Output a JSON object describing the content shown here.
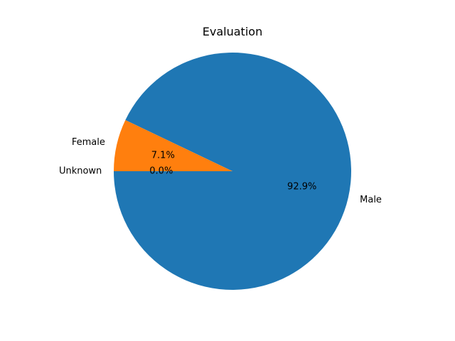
{
  "chart_data": {
    "type": "pie",
    "title": "Evaluation",
    "slices": [
      {
        "label": "Male",
        "value": 92.9,
        "pct_label": "92.9%",
        "color": "#1f77b4"
      },
      {
        "label": "Female",
        "value": 7.1,
        "pct_label": "7.1%",
        "color": "#ff7f0e"
      },
      {
        "label": "Unknown",
        "value": 0.0,
        "pct_label": "0.0%",
        "color": "#2ca02c"
      }
    ],
    "start_angle_deg": 180,
    "direction": "counterclockwise"
  }
}
